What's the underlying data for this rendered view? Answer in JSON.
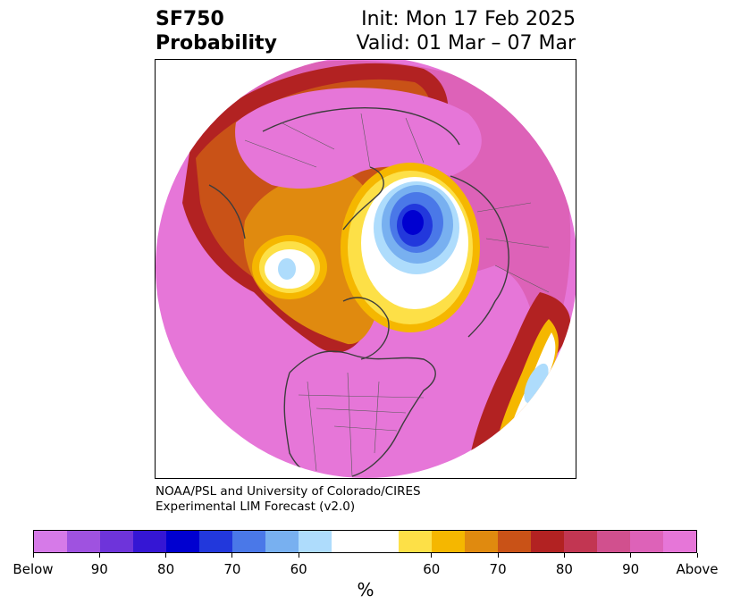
{
  "header": {
    "variable": "SF750",
    "subtitle": "Probability",
    "init": "Init: Mon 17 Feb 2025",
    "valid": "Valid: 01 Mar – 07 Mar"
  },
  "credits": {
    "line1": "NOAA/PSL and University of Colorado/CIRES",
    "line2": "Experimental LIM Forecast (v2.0)"
  },
  "colorbar": {
    "unit": "%",
    "below_colors": [
      "#d67ae8",
      "#9f52e0",
      "#6e34da",
      "#3516d4",
      "#0000d0",
      "#2238dc",
      "#4a78e8",
      "#78b0f0",
      "#aedcfc"
    ],
    "neutral_color": "#ffffff",
    "above_colors": [
      "#fde047",
      "#f5b700",
      "#e08a0f",
      "#c95217",
      "#b22222",
      "#c23652",
      "#d1508e",
      "#dd62b8",
      "#e676d8"
    ],
    "tick_labels": [
      "Below",
      "90",
      "80",
      "70",
      "60",
      "60",
      "70",
      "80",
      "90",
      "Above"
    ]
  },
  "map": {
    "projection": "north polar stereographic",
    "features": [
      "pink-above-normal-dominant",
      "blue-below-normal-center-north-of-siberia",
      "light-blue-spot-north-america",
      "light-blue-spot-north-pacific"
    ]
  }
}
